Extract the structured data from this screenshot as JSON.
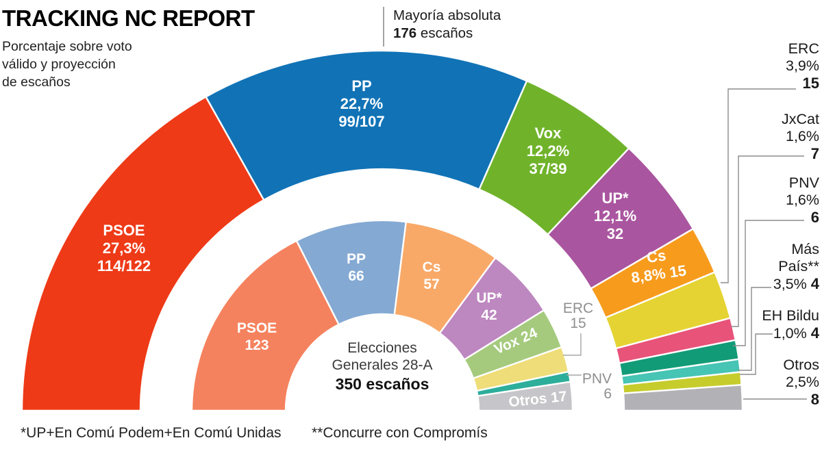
{
  "header": {
    "title": "TRACKING NC REPORT",
    "subtitle": "Porcentaje sobre voto\nválido y proyección\nde escaños"
  },
  "majority": {
    "label": "Mayoría absoluta",
    "seats": "176",
    "unit": " escaños"
  },
  "center": {
    "line1": "Elecciones",
    "line2": "Generales 28-A",
    "total": "350 escaños"
  },
  "footnotes": {
    "note1": "*UP+En Comú Podem+En Comú Unidas",
    "note2": "**Concurre con Compromís"
  },
  "chart_data": {
    "type": "pie",
    "layout": "hemicycle-double-ring",
    "total_seats": 350,
    "majority_seats": 176,
    "outer_ring": {
      "description": "Proyección de escaños (tracking NC Report)",
      "segments": [
        {
          "party": "PSOE",
          "pct": "27,3%",
          "seats_label": "114/122",
          "value": 118,
          "color": "#ee3a17"
        },
        {
          "party": "PP",
          "pct": "22,7%",
          "seats_label": "99/107",
          "value": 103,
          "color": "#1173b6"
        },
        {
          "party": "Vox",
          "pct": "12,2%",
          "seats_label": "37/39",
          "value": 38,
          "color": "#70b32b"
        },
        {
          "party": "UP*",
          "pct": "12,1%",
          "seats_label": "32",
          "value": 32,
          "color": "#a9559f"
        },
        {
          "party": "Cs",
          "pct": "8,8%",
          "seats_label": "15",
          "value": 15,
          "color": "#f79b1d"
        },
        {
          "party": "ERC",
          "pct": "3,9%",
          "seats_label": "15",
          "value": 15,
          "color": "#e5d334"
        },
        {
          "party": "JxCat",
          "pct": "1,6%",
          "seats_label": "7",
          "value": 7,
          "color": "#e8537a"
        },
        {
          "party": "PNV",
          "pct": "1,6%",
          "seats_label": "6",
          "value": 6,
          "color": "#129b77"
        },
        {
          "party": "Más País**",
          "pct": "3,5%",
          "seats_label": "4",
          "value": 4,
          "color": "#46c4b4"
        },
        {
          "party": "EH Bildu",
          "pct": "1,0%",
          "seats_label": "4",
          "value": 4,
          "color": "#c6cc2c"
        },
        {
          "party": "Otros",
          "pct": "2,5%",
          "seats_label": "8",
          "value": 8,
          "color": "#b2b1b6"
        }
      ]
    },
    "inner_ring": {
      "description": "Elecciones Generales 28-A",
      "total_label": "350 escaños",
      "segments": [
        {
          "party": "PSOE",
          "seats": 123,
          "color": "#f5825e"
        },
        {
          "party": "PP",
          "seats": 66,
          "color": "#84a9d3"
        },
        {
          "party": "Cs",
          "seats": 57,
          "color": "#f8a968"
        },
        {
          "party": "UP*",
          "seats": 42,
          "color": "#bd87c0"
        },
        {
          "party": "Vox",
          "seats": 24,
          "color": "#a5ca7d"
        },
        {
          "party": "ERC",
          "seats": 15,
          "color": "#eedd78"
        },
        {
          "party": "PNV",
          "seats": 6,
          "color": "#2cae9b"
        },
        {
          "party": "Otros",
          "seats": 17,
          "color": "#c6c6ca"
        }
      ]
    }
  }
}
